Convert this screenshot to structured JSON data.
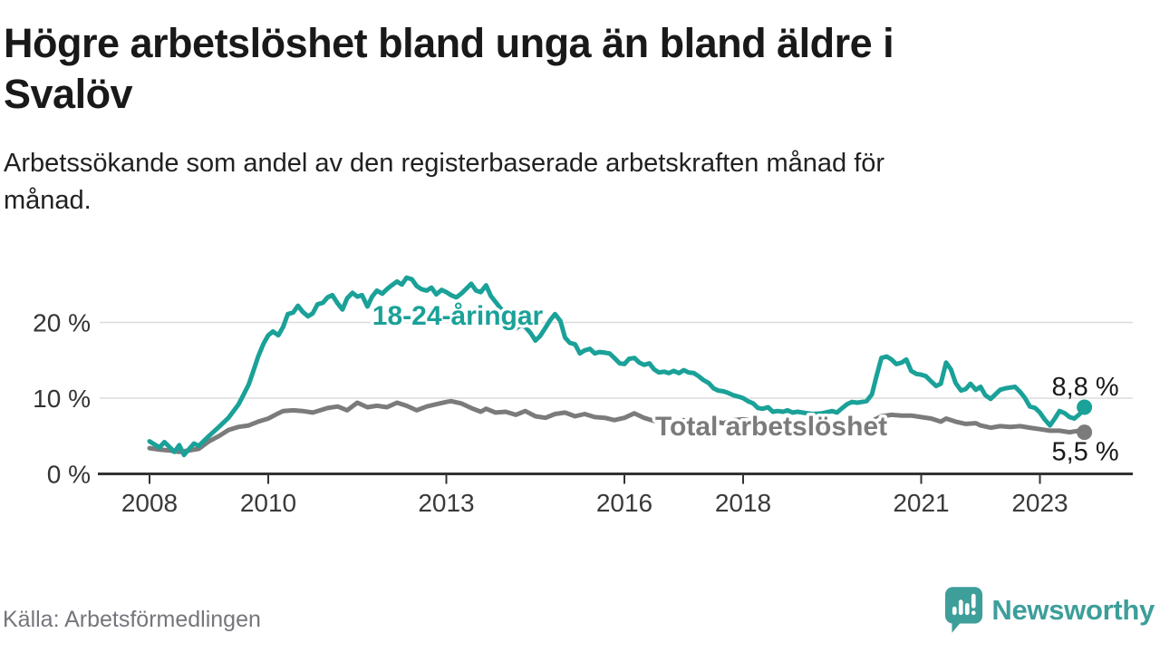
{
  "chart_data": {
    "type": "line",
    "title_lines": [
      "Högre arbetslöshet bland unga än bland äldre i",
      "Svalöv"
    ],
    "subtitle_lines": [
      "Arbetssökande som andel av den registerbaserade arbetskraften månad för",
      "månad."
    ],
    "source": "Källa: Arbetsförmedlingen",
    "grid": true,
    "legend": "inline-labels",
    "x_axis": {
      "unit": "year",
      "range": [
        2008,
        2023.75
      ]
    },
    "y_axis": {
      "unit": "percent",
      "ylim": [
        0,
        27
      ]
    },
    "x_ticks": [
      {
        "year": 2008,
        "label": "2008"
      },
      {
        "year": 2010,
        "label": "2010"
      },
      {
        "year": 2013,
        "label": "2013"
      },
      {
        "year": 2016,
        "label": "2016"
      },
      {
        "year": 2018,
        "label": "2018"
      },
      {
        "year": 2021,
        "label": "2021"
      },
      {
        "year": 2023,
        "label": "2023"
      }
    ],
    "y_ticks": [
      {
        "value": 0,
        "label": "0 %"
      },
      {
        "value": 10,
        "label": "10 %"
      },
      {
        "value": 20,
        "label": "20 %"
      }
    ],
    "series": [
      {
        "name": "18-24-åringar",
        "color": "#1aa198",
        "end_label": "8,8 %",
        "end_value": 8.8,
        "points": [
          [
            2008.0,
            4.3
          ],
          [
            2008.08,
            3.9
          ],
          [
            2008.17,
            3.5
          ],
          [
            2008.25,
            4.2
          ],
          [
            2008.33,
            3.6
          ],
          [
            2008.42,
            2.9
          ],
          [
            2008.5,
            3.8
          ],
          [
            2008.58,
            2.5
          ],
          [
            2008.67,
            3.3
          ],
          [
            2008.75,
            4.0
          ],
          [
            2008.83,
            3.7
          ],
          [
            2008.92,
            4.4
          ],
          [
            2009.0,
            5.0
          ],
          [
            2009.17,
            6.2
          ],
          [
            2009.33,
            7.4
          ],
          [
            2009.5,
            9.2
          ],
          [
            2009.58,
            10.4
          ],
          [
            2009.67,
            11.8
          ],
          [
            2009.75,
            13.6
          ],
          [
            2009.83,
            15.5
          ],
          [
            2009.92,
            17.2
          ],
          [
            2010.0,
            18.3
          ],
          [
            2010.08,
            18.8
          ],
          [
            2010.17,
            18.3
          ],
          [
            2010.25,
            19.4
          ],
          [
            2010.33,
            21.1
          ],
          [
            2010.42,
            21.3
          ],
          [
            2010.5,
            22.2
          ],
          [
            2010.58,
            21.4
          ],
          [
            2010.67,
            20.8
          ],
          [
            2010.75,
            21.2
          ],
          [
            2010.83,
            22.4
          ],
          [
            2010.92,
            22.6
          ],
          [
            2011.0,
            23.3
          ],
          [
            2011.08,
            23.6
          ],
          [
            2011.17,
            22.5
          ],
          [
            2011.25,
            21.7
          ],
          [
            2011.33,
            23.2
          ],
          [
            2011.42,
            23.9
          ],
          [
            2011.5,
            23.4
          ],
          [
            2011.58,
            23.6
          ],
          [
            2011.67,
            22.1
          ],
          [
            2011.75,
            23.4
          ],
          [
            2011.83,
            24.2
          ],
          [
            2011.92,
            23.8
          ],
          [
            2012.0,
            24.4
          ],
          [
            2012.08,
            24.9
          ],
          [
            2012.17,
            25.4
          ],
          [
            2012.25,
            25.0
          ],
          [
            2012.33,
            25.9
          ],
          [
            2012.42,
            25.7
          ],
          [
            2012.5,
            24.8
          ],
          [
            2012.58,
            24.4
          ],
          [
            2012.67,
            24.2
          ],
          [
            2012.75,
            24.6
          ],
          [
            2012.83,
            23.7
          ],
          [
            2012.92,
            24.3
          ],
          [
            2013.0,
            24.0
          ],
          [
            2013.08,
            23.6
          ],
          [
            2013.17,
            23.3
          ],
          [
            2013.25,
            23.8
          ],
          [
            2013.33,
            24.4
          ],
          [
            2013.42,
            25.1
          ],
          [
            2013.5,
            24.2
          ],
          [
            2013.58,
            24.0
          ],
          [
            2013.67,
            24.9
          ],
          [
            2013.75,
            23.5
          ],
          [
            2013.83,
            22.7
          ],
          [
            2013.92,
            21.8
          ],
          [
            2014.0,
            21.2
          ],
          [
            2014.08,
            20.4
          ],
          [
            2014.17,
            19.2
          ],
          [
            2014.25,
            19.6
          ],
          [
            2014.33,
            19.4
          ],
          [
            2014.42,
            18.6
          ],
          [
            2014.5,
            17.6
          ],
          [
            2014.58,
            18.2
          ],
          [
            2014.67,
            19.3
          ],
          [
            2014.75,
            20.3
          ],
          [
            2014.83,
            21.1
          ],
          [
            2014.92,
            20.2
          ],
          [
            2015.0,
            18.0
          ],
          [
            2015.08,
            17.3
          ],
          [
            2015.17,
            17.1
          ],
          [
            2015.25,
            15.9
          ],
          [
            2015.33,
            16.3
          ],
          [
            2015.42,
            16.5
          ],
          [
            2015.5,
            15.9
          ],
          [
            2015.58,
            16.1
          ],
          [
            2015.67,
            16.0
          ],
          [
            2015.75,
            15.9
          ],
          [
            2015.83,
            15.3
          ],
          [
            2015.92,
            14.6
          ],
          [
            2016.0,
            14.5
          ],
          [
            2016.08,
            15.2
          ],
          [
            2016.17,
            15.3
          ],
          [
            2016.25,
            14.7
          ],
          [
            2016.33,
            14.4
          ],
          [
            2016.42,
            14.6
          ],
          [
            2016.5,
            13.8
          ],
          [
            2016.58,
            13.4
          ],
          [
            2016.67,
            13.5
          ],
          [
            2016.75,
            13.3
          ],
          [
            2016.83,
            13.6
          ],
          [
            2016.92,
            13.3
          ],
          [
            2017.0,
            13.7
          ],
          [
            2017.08,
            13.4
          ],
          [
            2017.17,
            13.3
          ],
          [
            2017.25,
            12.9
          ],
          [
            2017.33,
            12.4
          ],
          [
            2017.42,
            12.0
          ],
          [
            2017.5,
            11.3
          ],
          [
            2017.58,
            11.0
          ],
          [
            2017.67,
            10.9
          ],
          [
            2017.75,
            10.7
          ],
          [
            2017.83,
            10.4
          ],
          [
            2017.92,
            10.2
          ],
          [
            2018.0,
            10.0
          ],
          [
            2018.08,
            9.6
          ],
          [
            2018.17,
            9.3
          ],
          [
            2018.25,
            8.7
          ],
          [
            2018.33,
            8.6
          ],
          [
            2018.42,
            8.8
          ],
          [
            2018.5,
            8.2
          ],
          [
            2018.58,
            8.3
          ],
          [
            2018.67,
            8.2
          ],
          [
            2018.75,
            8.4
          ],
          [
            2018.83,
            8.1
          ],
          [
            2018.92,
            8.2
          ],
          [
            2019.0,
            8.1
          ],
          [
            2019.17,
            7.9
          ],
          [
            2019.33,
            8.0
          ],
          [
            2019.5,
            8.3
          ],
          [
            2019.58,
            8.1
          ],
          [
            2019.67,
            8.7
          ],
          [
            2019.75,
            9.2
          ],
          [
            2019.83,
            9.5
          ],
          [
            2019.92,
            9.4
          ],
          [
            2020.0,
            9.5
          ],
          [
            2020.08,
            9.6
          ],
          [
            2020.17,
            10.5
          ],
          [
            2020.25,
            13.0
          ],
          [
            2020.33,
            15.3
          ],
          [
            2020.42,
            15.5
          ],
          [
            2020.5,
            15.1
          ],
          [
            2020.58,
            14.5
          ],
          [
            2020.67,
            14.7
          ],
          [
            2020.75,
            15.1
          ],
          [
            2020.83,
            13.6
          ],
          [
            2020.92,
            13.2
          ],
          [
            2021.0,
            13.1
          ],
          [
            2021.08,
            12.9
          ],
          [
            2021.17,
            12.2
          ],
          [
            2021.25,
            11.6
          ],
          [
            2021.33,
            11.9
          ],
          [
            2021.42,
            14.7
          ],
          [
            2021.5,
            13.8
          ],
          [
            2021.58,
            12.0
          ],
          [
            2021.67,
            11.0
          ],
          [
            2021.75,
            11.2
          ],
          [
            2021.83,
            11.9
          ],
          [
            2021.92,
            11.1
          ],
          [
            2022.0,
            11.5
          ],
          [
            2022.08,
            10.4
          ],
          [
            2022.17,
            9.9
          ],
          [
            2022.25,
            10.5
          ],
          [
            2022.33,
            11.1
          ],
          [
            2022.42,
            11.3
          ],
          [
            2022.5,
            11.4
          ],
          [
            2022.58,
            11.5
          ],
          [
            2022.67,
            10.8
          ],
          [
            2022.75,
            10.0
          ],
          [
            2022.83,
            8.9
          ],
          [
            2022.92,
            8.7
          ],
          [
            2023.0,
            8.1
          ],
          [
            2023.08,
            7.2
          ],
          [
            2023.17,
            6.4
          ],
          [
            2023.25,
            7.3
          ],
          [
            2023.33,
            8.3
          ],
          [
            2023.42,
            8.0
          ],
          [
            2023.5,
            7.5
          ],
          [
            2023.58,
            7.3
          ],
          [
            2023.67,
            7.9
          ],
          [
            2023.75,
            8.8
          ]
        ]
      },
      {
        "name": "Total arbetslöshet",
        "color": "#7b7b7b",
        "end_label": "5,5 %",
        "end_value": 5.5,
        "points": [
          [
            2008.0,
            3.4
          ],
          [
            2008.17,
            3.2
          ],
          [
            2008.33,
            3.1
          ],
          [
            2008.5,
            2.9
          ],
          [
            2008.67,
            3.1
          ],
          [
            2008.83,
            3.3
          ],
          [
            2009.0,
            4.3
          ],
          [
            2009.17,
            5.0
          ],
          [
            2009.33,
            5.8
          ],
          [
            2009.5,
            6.2
          ],
          [
            2009.67,
            6.4
          ],
          [
            2009.83,
            6.9
          ],
          [
            2010.0,
            7.3
          ],
          [
            2010.17,
            8.0
          ],
          [
            2010.25,
            8.3
          ],
          [
            2010.42,
            8.4
          ],
          [
            2010.58,
            8.3
          ],
          [
            2010.75,
            8.1
          ],
          [
            2010.92,
            8.5
          ],
          [
            2011.0,
            8.7
          ],
          [
            2011.17,
            8.9
          ],
          [
            2011.33,
            8.4
          ],
          [
            2011.5,
            9.4
          ],
          [
            2011.67,
            8.8
          ],
          [
            2011.83,
            9.0
          ],
          [
            2012.0,
            8.8
          ],
          [
            2012.17,
            9.4
          ],
          [
            2012.33,
            9.0
          ],
          [
            2012.5,
            8.4
          ],
          [
            2012.67,
            8.9
          ],
          [
            2012.83,
            9.2
          ],
          [
            2013.0,
            9.5
          ],
          [
            2013.08,
            9.6
          ],
          [
            2013.25,
            9.3
          ],
          [
            2013.42,
            8.7
          ],
          [
            2013.58,
            8.2
          ],
          [
            2013.67,
            8.6
          ],
          [
            2013.83,
            8.1
          ],
          [
            2014.0,
            8.2
          ],
          [
            2014.17,
            7.8
          ],
          [
            2014.33,
            8.3
          ],
          [
            2014.5,
            7.6
          ],
          [
            2014.67,
            7.4
          ],
          [
            2014.83,
            7.9
          ],
          [
            2015.0,
            8.1
          ],
          [
            2015.17,
            7.6
          ],
          [
            2015.33,
            7.9
          ],
          [
            2015.5,
            7.5
          ],
          [
            2015.67,
            7.4
          ],
          [
            2015.83,
            7.1
          ],
          [
            2016.0,
            7.4
          ],
          [
            2016.17,
            8.0
          ],
          [
            2016.33,
            7.4
          ],
          [
            2016.5,
            7.0
          ],
          [
            2016.67,
            7.3
          ],
          [
            2016.83,
            6.8
          ],
          [
            2017.0,
            7.1
          ],
          [
            2017.17,
            6.6
          ],
          [
            2017.33,
            6.8
          ],
          [
            2017.5,
            6.9
          ],
          [
            2017.67,
            6.7
          ],
          [
            2017.83,
            7.1
          ],
          [
            2018.0,
            7.2
          ],
          [
            2018.25,
            6.9
          ],
          [
            2018.5,
            6.6
          ],
          [
            2018.75,
            6.4
          ],
          [
            2019.0,
            6.3
          ],
          [
            2019.25,
            6.2
          ],
          [
            2019.5,
            6.3
          ],
          [
            2019.75,
            6.5
          ],
          [
            2020.0,
            6.6
          ],
          [
            2020.17,
            7.0
          ],
          [
            2020.33,
            7.6
          ],
          [
            2020.5,
            7.8
          ],
          [
            2020.67,
            7.7
          ],
          [
            2020.83,
            7.7
          ],
          [
            2021.0,
            7.5
          ],
          [
            2021.17,
            7.3
          ],
          [
            2021.33,
            6.9
          ],
          [
            2021.42,
            7.3
          ],
          [
            2021.58,
            6.9
          ],
          [
            2021.75,
            6.6
          ],
          [
            2021.92,
            6.7
          ],
          [
            2022.0,
            6.4
          ],
          [
            2022.17,
            6.1
          ],
          [
            2022.33,
            6.3
          ],
          [
            2022.5,
            6.2
          ],
          [
            2022.67,
            6.3
          ],
          [
            2022.83,
            6.1
          ],
          [
            2023.0,
            5.9
          ],
          [
            2023.17,
            5.7
          ],
          [
            2023.33,
            5.7
          ],
          [
            2023.5,
            5.5
          ],
          [
            2023.58,
            5.6
          ],
          [
            2023.67,
            5.7
          ],
          [
            2023.75,
            5.5
          ]
        ]
      }
    ]
  },
  "footer": {
    "brand": "Newsworthy"
  },
  "colors": {
    "accent_teal": "#1aa198",
    "line_gray": "#7b7b7b",
    "brand_teal": "#3d9e9a",
    "grid": "#dcdcdc",
    "axis": "#333333",
    "text_dark": "#1a1a1a",
    "text_gray": "#75757c"
  }
}
